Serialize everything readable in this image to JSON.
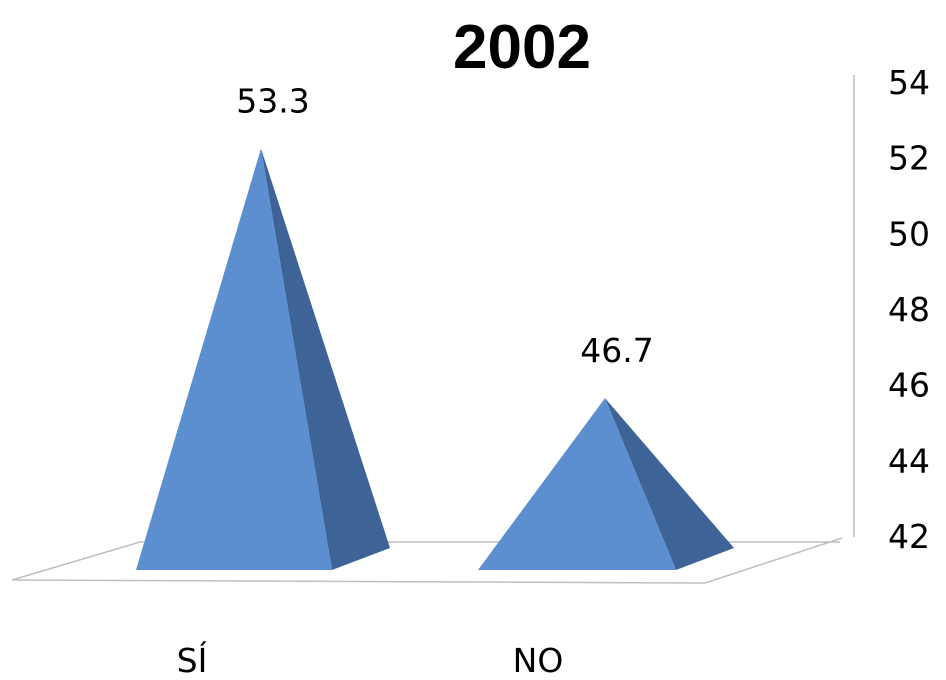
{
  "chart_data": {
    "type": "bar",
    "shape": "pyramid-3d",
    "title": "2002",
    "categories": [
      "SÍ",
      "NO"
    ],
    "values": [
      53.3,
      46.7
    ],
    "data_labels": [
      "53.3",
      "46.7"
    ],
    "ylim": [
      42,
      54
    ],
    "yticks": [
      "54",
      "52",
      "50",
      "48",
      "46",
      "44",
      "42"
    ],
    "xlabel": "",
    "ylabel": "",
    "grid": false,
    "legend": "none",
    "y_axis_side": "right",
    "colors": {
      "face_front": "#5b8fd0",
      "face_side": "#3e6396",
      "axis": "#bfbfbf"
    }
  }
}
